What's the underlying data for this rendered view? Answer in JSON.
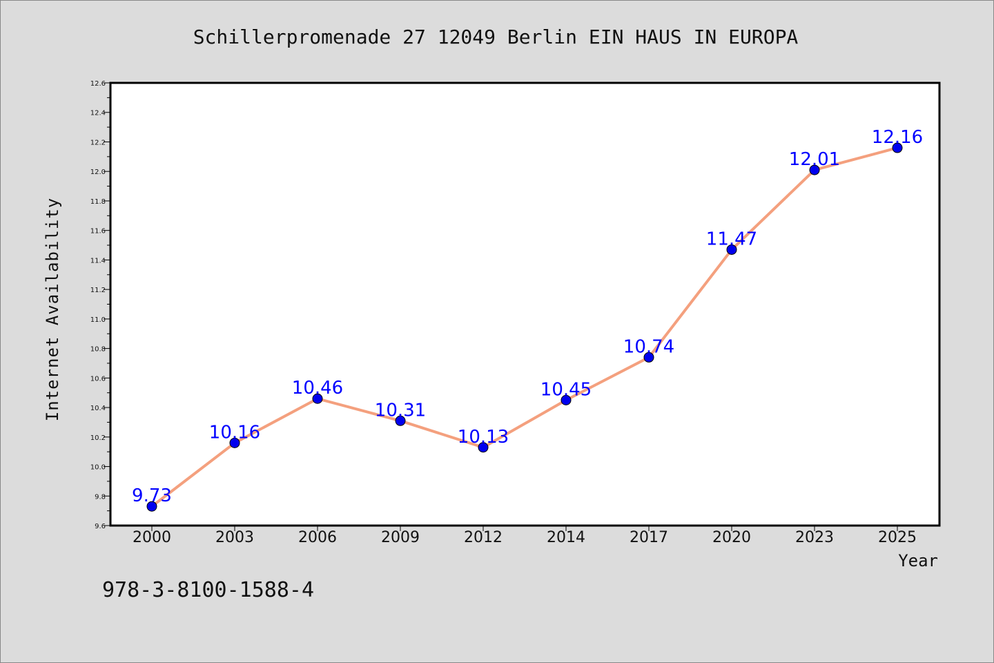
{
  "chart_data": {
    "type": "line",
    "title": "Schillerpromenade 27 12049 Berlin EIN HAUS IN EUROPA",
    "xlabel": "Year",
    "ylabel": "Internet Availability",
    "categories": [
      "2000",
      "2003",
      "2006",
      "2009",
      "2012",
      "2014",
      "2017",
      "2020",
      "2023",
      "2025"
    ],
    "series": [
      {
        "values": [
          9.73,
          10.16,
          10.46,
          10.31,
          10.13,
          10.45,
          10.74,
          11.47,
          12.01,
          12.16
        ]
      }
    ],
    "data_labels": [
      "9.73",
      "10.16",
      "10.46",
      "10.31",
      "10.13",
      "10.45",
      "10.74",
      "11.47",
      "12.01",
      "12.16"
    ],
    "ylim": [
      9.6,
      12.6
    ],
    "yticks": [
      "9.6",
      "9.8",
      "10.0",
      "10.2",
      "10.4",
      "10.6",
      "10.8",
      "11.0",
      "11.2",
      "11.4",
      "11.6",
      "11.8",
      "12.0",
      "12.2",
      "12.4",
      "12.6"
    ],
    "grid": false,
    "colors": {
      "line": "#f4a07e",
      "marker": "#0000ee",
      "label": "#0000ff",
      "plot_bg": "#ffffff",
      "page_bg": "#dcdcdc"
    }
  },
  "annotation": "978-3-8100-1588-4"
}
